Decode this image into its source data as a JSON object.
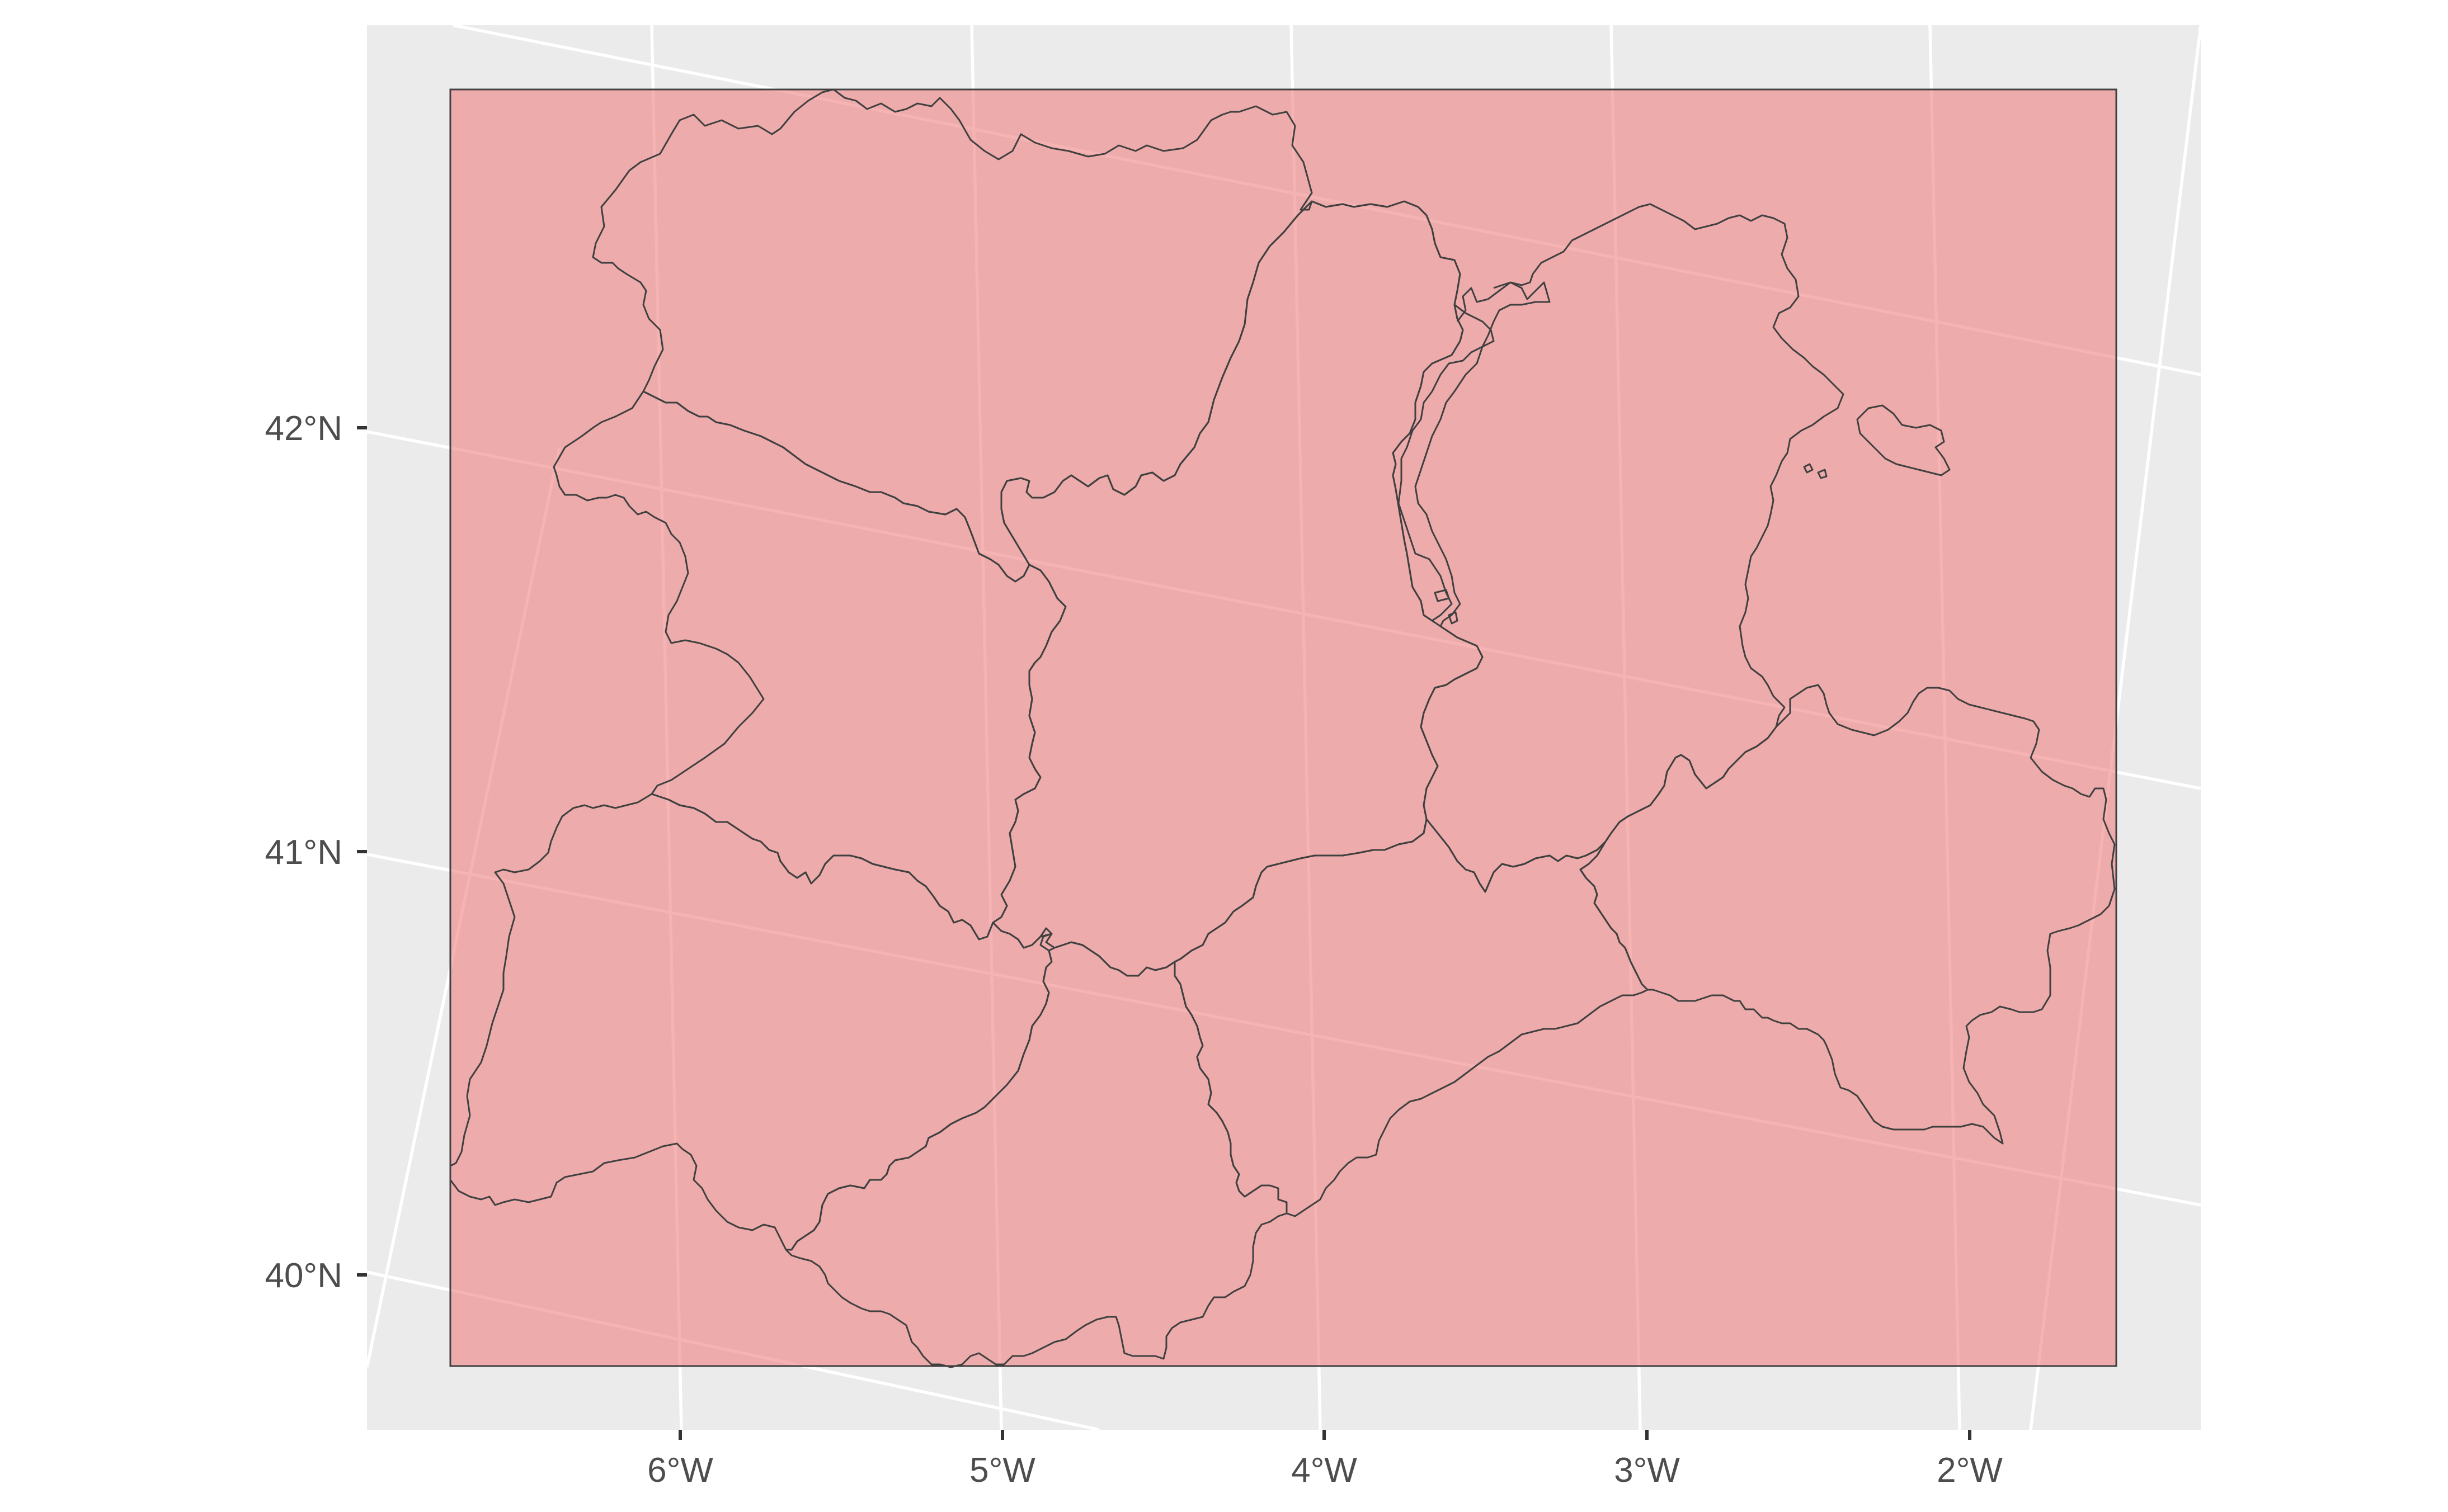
{
  "map": {
    "y_axis_labels": [
      "42°N",
      "41°N",
      "40°N"
    ],
    "x_axis_labels": [
      "6°W",
      "5°W",
      "4°W",
      "3°W",
      "2°W"
    ],
    "panel_background": "#ebebeb",
    "region_fill": "#f08080",
    "region_fill_opacity": 0.6,
    "border_color": "#404040"
  }
}
